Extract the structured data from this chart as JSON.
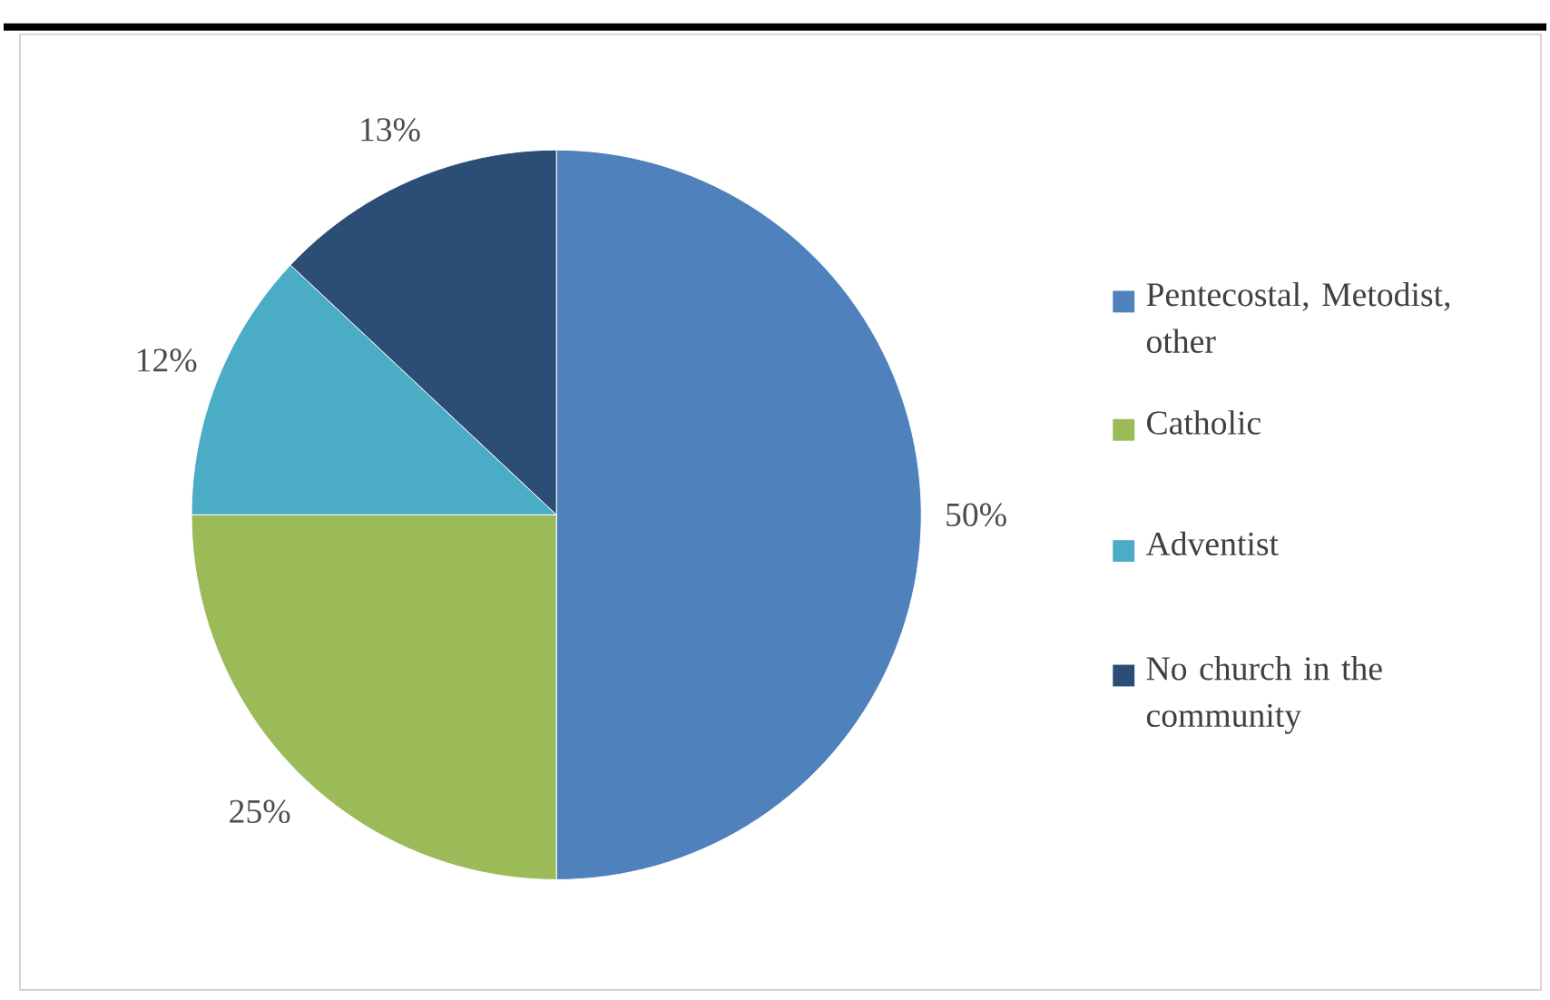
{
  "chart_data": {
    "type": "pie",
    "categories": [
      "Pentecostal, Metodist, other",
      "Catholic",
      "Adventist",
      "No church in the community"
    ],
    "values": [
      50,
      25,
      12,
      13
    ],
    "colors": [
      "#4f81bd",
      "#9bbb59",
      "#4bacc6",
      "#2c4d75"
    ],
    "value_labels": [
      "50%",
      "25%",
      "12%",
      "13%"
    ],
    "legend": "right"
  }
}
